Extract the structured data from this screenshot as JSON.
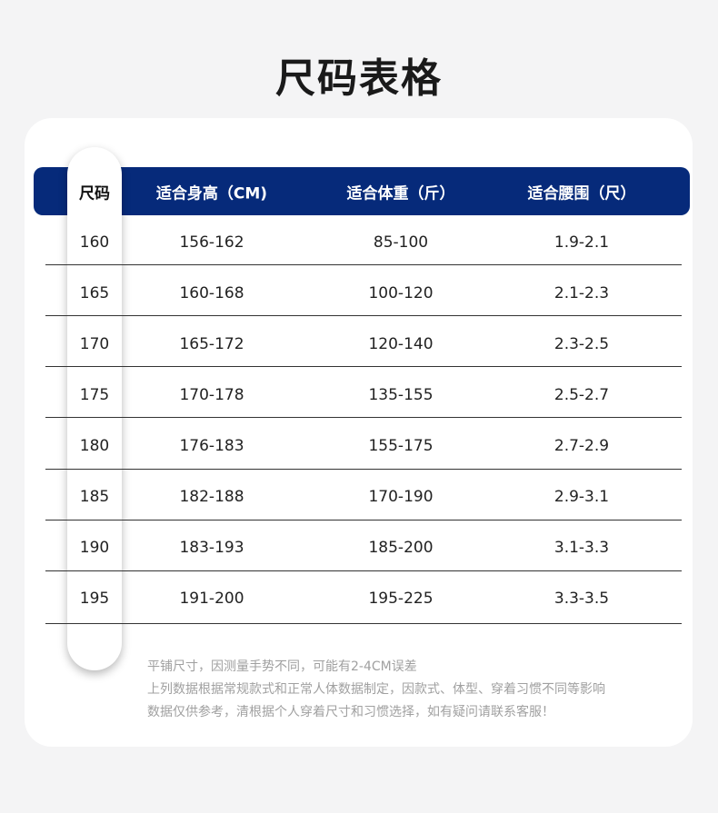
{
  "title": "尺码表格",
  "colors": {
    "header_bg": "#062a7a",
    "header_text": "#ffffff"
  },
  "table": {
    "headers": [
      "尺码",
      "适合身高（CM)",
      "适合体重（斤）",
      "适合腰围（尺）"
    ],
    "rows": [
      [
        "160",
        "156-162",
        "85-100",
        "1.9-2.1"
      ],
      [
        "165",
        "160-168",
        "100-120",
        "2.1-2.3"
      ],
      [
        "170",
        "165-172",
        "120-140",
        "2.3-2.5"
      ],
      [
        "175",
        "170-178",
        "135-155",
        "2.5-2.7"
      ],
      [
        "180",
        "176-183",
        "155-175",
        "2.7-2.9"
      ],
      [
        "185",
        "182-188",
        "170-190",
        "2.9-3.1"
      ],
      [
        "190",
        "183-193",
        "185-200",
        "3.1-3.3"
      ],
      [
        "195",
        "191-200",
        "195-225",
        "3.3-3.5"
      ]
    ]
  },
  "notes": [
    "平铺尺寸，因测量手势不同，可能有2-4CM误差",
    "上列数据根据常规款式和正常人体数据制定，因款式、体型、穿着习惯不同等影响",
    "数据仅供参考，清根据个人穿着尺寸和习惯选择，如有疑问请联系客服！"
  ]
}
